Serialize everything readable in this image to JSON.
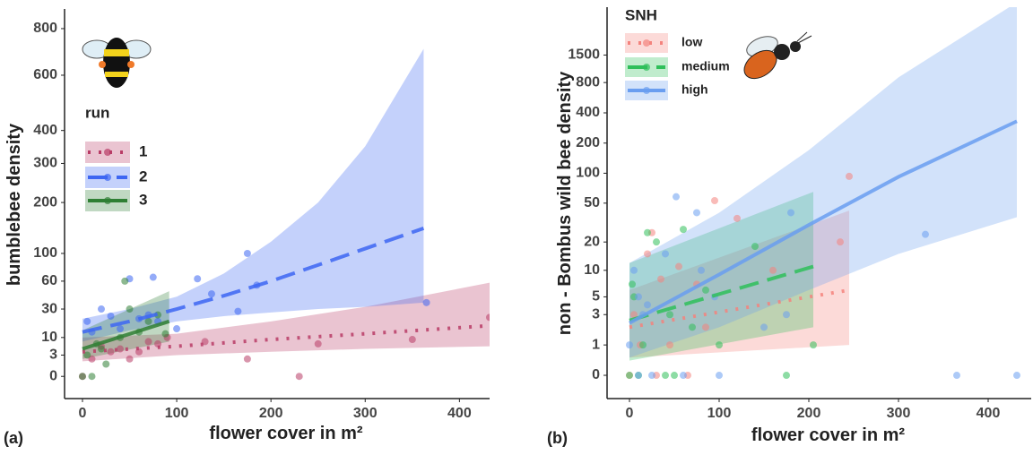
{
  "chart_data": [
    {
      "type": "scatter-fit",
      "panel_label": "(a)",
      "xlabel": "flower cover in m²",
      "ylabel": "bumblebee density",
      "xlim": [
        -19,
        432
      ],
      "ylim": [
        -3,
        880
      ],
      "yscale": "sqrt",
      "xticks": [
        0,
        100,
        200,
        300,
        400
      ],
      "yticks": [
        0,
        3,
        10,
        30,
        60,
        100,
        200,
        300,
        400,
        600,
        800
      ],
      "legend_title": "run",
      "series": [
        {
          "name": "1",
          "color": "#b83c66",
          "dash": "dotted",
          "fit": {
            "x": [
              0,
              100,
              200,
              300,
              432
            ],
            "values": [
              4,
              6,
              9,
              12,
              17
            ],
            "lower": [
              1.5,
              3,
              4,
              5,
              6
            ],
            "upper": [
              10,
              12,
              20,
              32,
              58
            ]
          },
          "points": {
            "x": [
              0,
              10,
              20,
              30,
              40,
              50,
              60,
              70,
              80,
              90,
              130,
              175,
              230,
              250,
              350,
              432
            ],
            "values": [
              0,
              2,
              6,
              4,
              5,
              2,
              4,
              8,
              7,
              10,
              8,
              2,
              0,
              7,
              9,
              23
            ]
          }
        },
        {
          "name": "2",
          "color": "#3d66f2",
          "dash": "dashed",
          "fit": {
            "x": [
              0,
              50,
              100,
              150,
              200,
              250,
              300,
              362
            ],
            "values": [
              13,
              20,
              30,
              43,
              60,
              82,
              108,
              145
            ],
            "lower": [
              8,
              14,
              20,
              24,
              27,
              30,
              32,
              36
            ],
            "upper": [
              22,
              30,
              42,
              70,
              120,
              200,
              350,
              710
            ]
          },
          "points": {
            "x": [
              5,
              10,
              20,
              30,
              40,
              50,
              60,
              70,
              75,
              80,
              100,
              122,
              137,
              165,
              175,
              185,
              365
            ],
            "values": [
              20,
              13,
              30,
              24,
              15,
              63,
              22,
              25,
              65,
              20,
              15,
              63,
              45,
              28,
              100,
              55,
              36
            ]
          }
        },
        {
          "name": "3",
          "color": "#2f7f34",
          "dash": "solid",
          "fit": {
            "x": [
              0,
              92
            ],
            "values": [
              5,
              20
            ],
            "lower": [
              2,
              8
            ],
            "upper": [
              14,
              48
            ]
          },
          "points": {
            "x": [
              0,
              5,
              10,
              15,
              20,
              25,
              40,
              45,
              50,
              60,
              70,
              80,
              88
            ],
            "values": [
              0,
              3,
              0,
              7,
              5,
              1,
              10,
              60,
              30,
              13,
              20,
              25,
              12
            ]
          }
        }
      ]
    },
    {
      "type": "scatter-fit",
      "panel_label": "(b)",
      "xlabel": "flower cover in m²",
      "ylabel": "non - Bombus wild bee density",
      "xlim": [
        -25,
        448
      ],
      "ylim": [
        -0.4,
        4300
      ],
      "yscale": "log1p",
      "xticks": [
        0,
        100,
        200,
        300,
        400
      ],
      "yticks": [
        0,
        1,
        3,
        5,
        10,
        20,
        50,
        100,
        200,
        400,
        800,
        1500
      ],
      "legend_title": "SNH",
      "series": [
        {
          "name": "low",
          "color": "#f4837d",
          "dash": "dotted",
          "fit": {
            "x": [
              0,
              245
            ],
            "values": [
              2,
              6
            ],
            "lower": [
              0.5,
              1
            ],
            "upper": [
              6,
              42
            ]
          },
          "points": {
            "x": [
              0,
              5,
              12,
              20,
              25,
              30,
              35,
              45,
              55,
              65,
              75,
              85,
              95,
              120,
              160,
              235,
              245
            ],
            "values": [
              0,
              3,
              1,
              15,
              25,
              0,
              8,
              1,
              11,
              0,
              7,
              2,
              53,
              35,
              10,
              20,
              93
            ]
          }
        },
        {
          "name": "medium",
          "color": "#2fbf5a",
          "dash": "dashed",
          "fit": {
            "x": [
              0,
              205
            ],
            "values": [
              2.5,
              11
            ],
            "lower": [
              0.4,
              2
            ],
            "upper": [
              12,
              65
            ]
          },
          "points": {
            "x": [
              0,
              3,
              5,
              10,
              15,
              20,
              30,
              40,
              45,
              50,
              60,
              70,
              85,
              100,
              140,
              175,
              205
            ],
            "values": [
              0,
              7,
              5,
              0,
              1,
              25,
              20,
              0,
              3,
              0,
              27,
              2,
              6,
              1,
              18,
              0,
              1
            ]
          }
        },
        {
          "name": "high",
          "color": "#6a9ef0",
          "dash": "solid",
          "fit": {
            "x": [
              0,
              100,
              200,
              300,
              432
            ],
            "values": [
              2.3,
              9,
              30,
              92,
              330
            ],
            "lower": [
              0.5,
              2,
              6,
              15,
              36
            ],
            "upper": [
              12,
              40,
              170,
              900,
              5000
            ]
          },
          "points": {
            "x": [
              0,
              5,
              10,
              10,
              15,
              20,
              25,
              40,
              52,
              60,
              75,
              80,
              95,
              100,
              150,
              175,
              180,
              330,
              365,
              432
            ],
            "values": [
              1,
              10,
              5,
              0,
              3,
              4,
              0,
              15,
              58,
              0,
              40,
              10,
              5,
              0,
              2,
              3,
              40,
              24,
              0,
              0
            ]
          }
        }
      ]
    }
  ]
}
